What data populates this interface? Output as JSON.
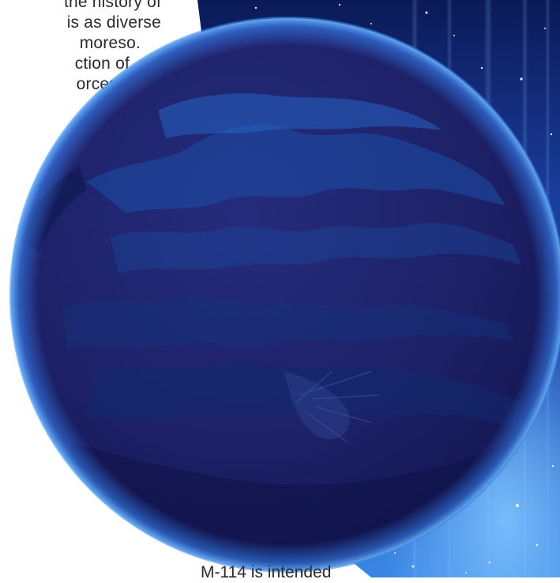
{
  "text_block_top": {
    "lines": [
      "the history of",
      "is as diverse",
      "moreso.",
      "ction of",
      "orces"
    ]
  },
  "text_bottom": "M-114 is intended",
  "colors": {
    "space_dark": "#0d1b5c",
    "space_mid": "#1a3fa0",
    "space_light": "#6fb4ff",
    "planet_base": "#1b1f63",
    "planet_highlight": "#1f5bb8",
    "planet_rim": "#2f8dff",
    "text": "#2a2a2a"
  },
  "icons": {
    "planet": "planet-globe",
    "stars": "star-field"
  }
}
